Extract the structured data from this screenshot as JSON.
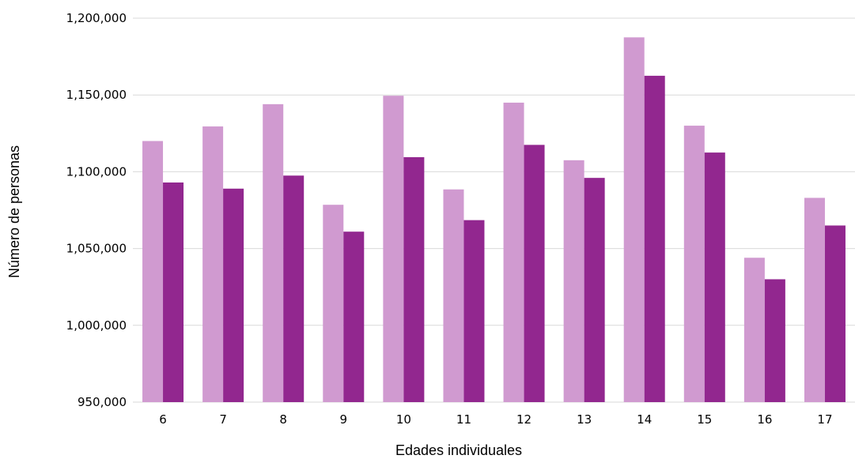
{
  "chart_data": {
    "type": "bar",
    "title": "",
    "xlabel": "Edades individuales",
    "ylabel": "Número de personas",
    "categories": [
      "6",
      "7",
      "8",
      "9",
      "10",
      "11",
      "12",
      "13",
      "14",
      "15",
      "16",
      "17"
    ],
    "series": [
      {
        "color": "#d09ad0",
        "values": [
          1120000,
          1129500,
          1144000,
          1078500,
          1149500,
          1088500,
          1145000,
          1107500,
          1187500,
          1130000,
          1044000,
          1083000
        ]
      },
      {
        "color": "#92278f",
        "values": [
          1093000,
          1089000,
          1097500,
          1061000,
          1109500,
          1068500,
          1117500,
          1096000,
          1162500,
          1112500,
          1030000,
          1065000
        ]
      }
    ],
    "ylim": [
      950000,
      1200000
    ],
    "yticks": [
      "950,000",
      "1,000,000",
      "1,050,000",
      "1,100,000",
      "1,150,000",
      "1,200,000"
    ],
    "ytick_values": [
      950000,
      1000000,
      1050000,
      1100000,
      1150000,
      1200000
    ],
    "grid": true,
    "gridline_color": "#d9d9d9",
    "legend": "none"
  }
}
